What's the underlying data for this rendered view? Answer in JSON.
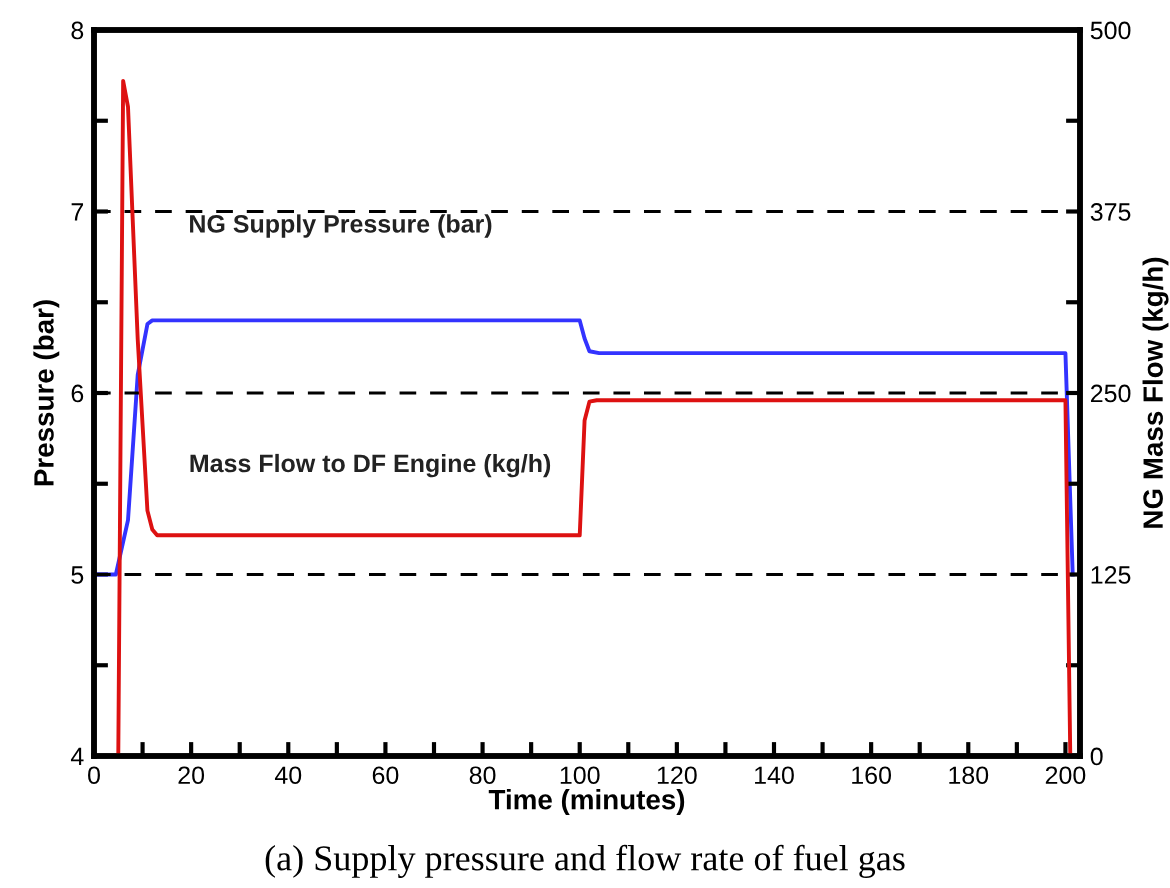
{
  "chart_data": {
    "type": "line",
    "xlabel": "Time (minutes)",
    "ylabel": "Pressure (bar)",
    "y2label": "NG Mass Flow (kg/h)",
    "xlim": [
      0,
      203
    ],
    "xticks": [
      0,
      {
        "value": 10,
        "label": null
      },
      20,
      {
        "value": 30,
        "label": null
      },
      40,
      {
        "value": 50,
        "label": null
      },
      60,
      {
        "value": 70,
        "label": null
      },
      80,
      {
        "value": 90,
        "label": null
      },
      100,
      {
        "value": 110,
        "label": null
      },
      120,
      {
        "value": 130,
        "label": null
      },
      140,
      {
        "value": 150,
        "label": null
      },
      160,
      {
        "value": 170,
        "label": null
      },
      180,
      {
        "value": 190,
        "label": null
      },
      200
    ],
    "ylim": [
      4,
      8
    ],
    "yticks": [
      4,
      {
        "value": 4.5,
        "label": null
      },
      5,
      {
        "value": 5.5,
        "label": null
      },
      6,
      {
        "value": 6.5,
        "label": null
      },
      7,
      {
        "value": 7.5,
        "label": null
      },
      8
    ],
    "y2lim": [
      0,
      500
    ],
    "y2ticks": [
      0,
      {
        "value": 62.5,
        "label": null
      },
      125,
      {
        "value": 187.5,
        "label": null
      },
      250,
      {
        "value": 312.5,
        "label": null
      },
      375,
      {
        "value": 437.5,
        "label": null
      },
      500
    ],
    "grid": "y",
    "marker": "none",
    "line_style": "solid",
    "legend": false,
    "series": [
      {
        "color": "#3333ff",
        "x": [
          0,
          4.5,
          7,
          9,
          11,
          12,
          100,
          101,
          102,
          104,
          200,
          201.5
        ],
        "values": [
          5.0,
          5.0,
          5.3,
          6.1,
          6.38,
          6.4,
          6.4,
          6.3,
          6.23,
          6.22,
          6.22,
          5.0
        ]
      },
      {
        "color": "#dd1111",
        "axis": "y2",
        "x": [
          5,
          6,
          7,
          9,
          11,
          12,
          13,
          100,
          101,
          102,
          103.5,
          200,
          201
        ],
        "values": [
          0,
          465,
          447,
          287,
          169,
          156,
          152,
          152,
          231,
          244,
          245,
          245,
          0
        ]
      }
    ],
    "annotations": [
      "NG Supply Pressure (bar)",
      "Mass Flow to DF Engine (kg/h)",
      "(a) Supply pressure and flow rate of fuel gas"
    ]
  }
}
